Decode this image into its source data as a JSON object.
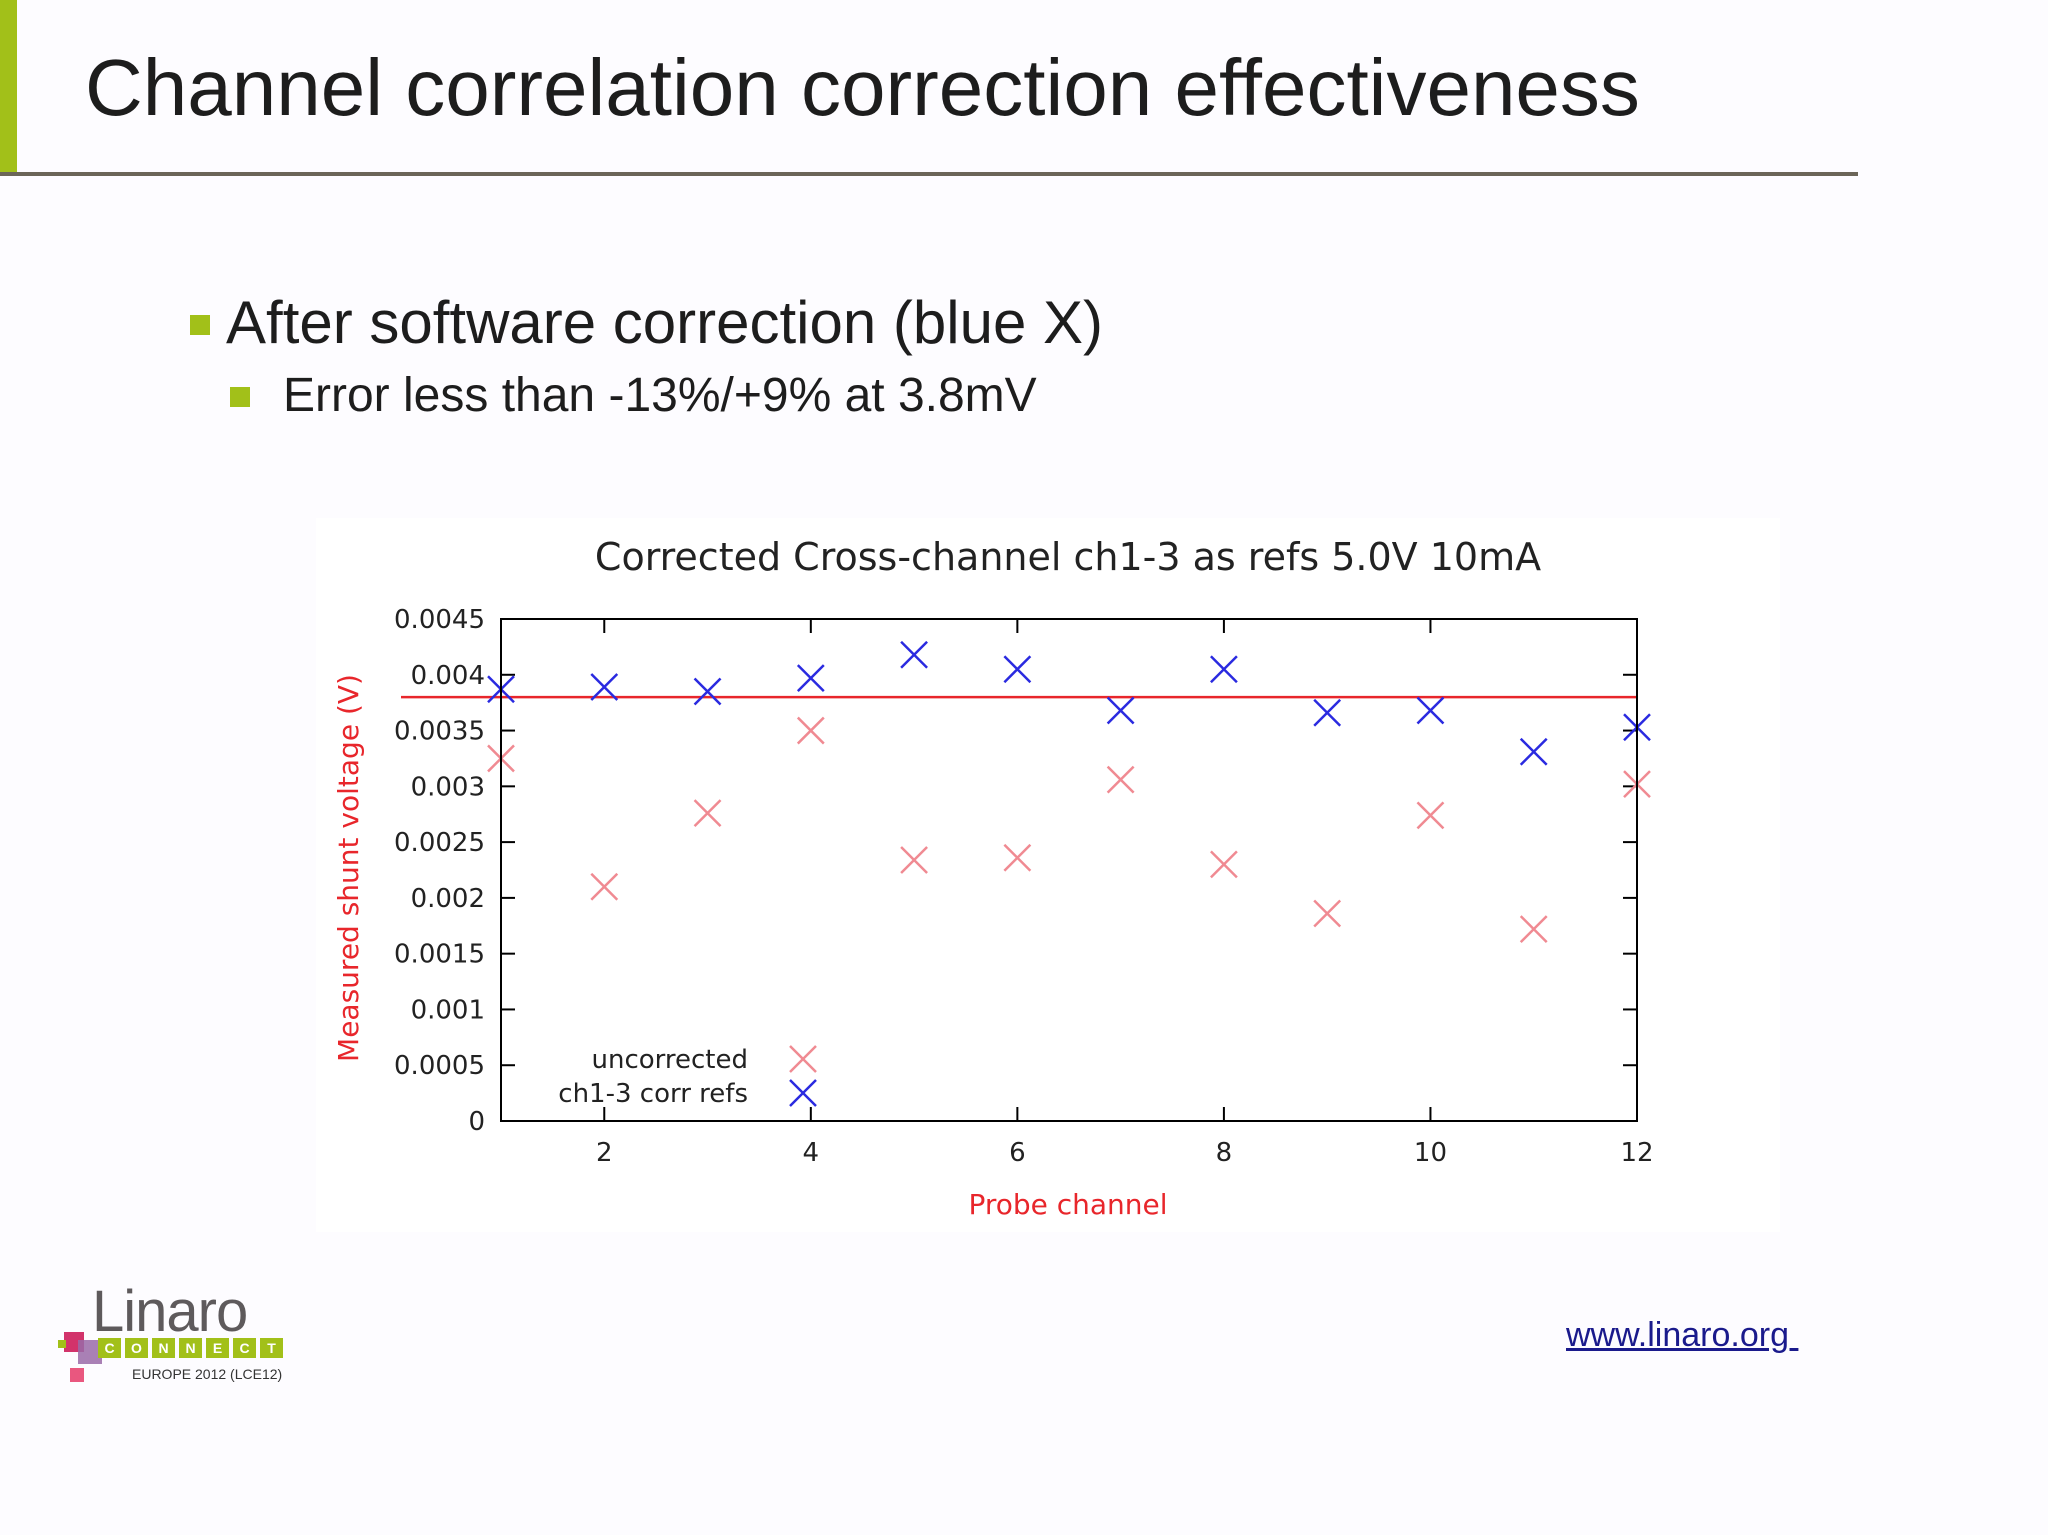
{
  "slide": {
    "title": "Channel correlation correction effectiveness",
    "bullet1": "After software correction (blue X)",
    "bullet2": "Error less than -13%/+9% at 3.8mV",
    "link": "www.linaro.org ",
    "accent_color": "#a2c019"
  },
  "logo": {
    "word": "Linaro",
    "letters": [
      "C",
      "O",
      "N",
      "N",
      "E",
      "C",
      "T"
    ],
    "subtitle": "EUROPE 2012 (LCE12)"
  },
  "chart_data": {
    "type": "scatter",
    "title": "Corrected Cross-channel ch1-3 as refs 5.0V 10mA",
    "xlabel": "Probe channel",
    "ylabel": "Measured shunt voltage (V)",
    "xlim": [
      1,
      12
    ],
    "ylim": [
      0,
      0.0045
    ],
    "x_ticks": [
      2,
      4,
      6,
      8,
      10,
      12
    ],
    "y_ticks": [
      0,
      0.0005,
      0.001,
      0.0015,
      0.002,
      0.0025,
      0.003,
      0.0035,
      0.004,
      0.0045
    ],
    "y_tick_labels": [
      "0",
      "0.0005",
      "0.001",
      "0.0015",
      "0.002",
      "0.0025",
      "0.003",
      "0.0035",
      "0.004",
      "0.0045"
    ],
    "legend_position": "bottom-left",
    "grid": false,
    "reference_line": {
      "y": 0.0038,
      "color": "#e8262b"
    },
    "series": [
      {
        "name": "uncorrected",
        "color": "#f08a92",
        "marker": "x",
        "x": [
          1,
          2,
          3,
          4,
          5,
          6,
          7,
          8,
          9,
          10,
          11,
          12
        ],
        "y": [
          0.00325,
          0.0021,
          0.00276,
          0.0035,
          0.00234,
          0.00236,
          0.00306,
          0.0023,
          0.00186,
          0.00274,
          0.00172,
          0.00302
        ]
      },
      {
        "name": "ch1-3 corr refs",
        "color": "#2a2ae0",
        "marker": "x",
        "x": [
          1,
          2,
          3,
          4,
          5,
          6,
          7,
          8,
          9,
          10,
          11,
          12
        ],
        "y": [
          0.00387,
          0.00389,
          0.00385,
          0.00397,
          0.00418,
          0.00405,
          0.00368,
          0.00405,
          0.00366,
          0.00368,
          0.00331,
          0.00353
        ]
      }
    ]
  }
}
